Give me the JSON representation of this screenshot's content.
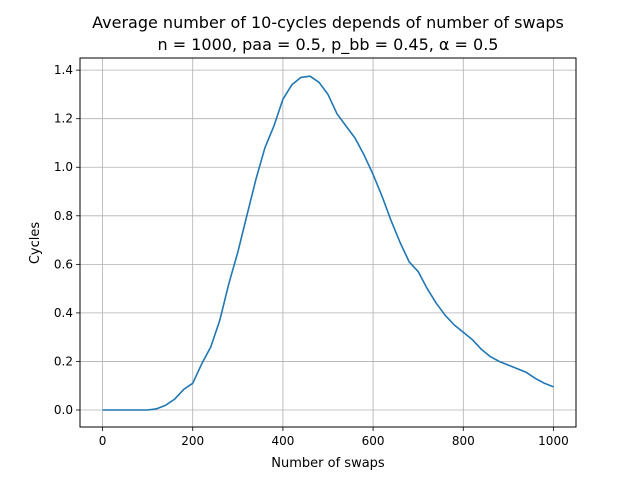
{
  "chart_data": {
    "type": "line",
    "title": "Average number of 10-cycles depends of number of swaps",
    "subtitle": "n = 1000, paa = 0.5, p_bb = 0.45, α = 0.5",
    "xlabel": "Number of swaps",
    "ylabel": "Cycles",
    "xlim": [
      -50,
      1050
    ],
    "ylim": [
      -0.07,
      1.45
    ],
    "xticks": [
      0,
      200,
      400,
      600,
      800,
      1000
    ],
    "yticks": [
      0.0,
      0.2,
      0.4,
      0.6,
      0.8,
      1.0,
      1.2,
      1.4
    ],
    "xtick_labels": [
      "0",
      "200",
      "400",
      "600",
      "800",
      "1000"
    ],
    "ytick_labels": [
      "0.0",
      "0.2",
      "0.4",
      "0.6",
      "0.8",
      "1.0",
      "1.2",
      "1.4"
    ],
    "grid": true,
    "series": [
      {
        "color": "#1f77b4",
        "x": [
          0,
          50,
          100,
          120,
          140,
          160,
          180,
          200,
          220,
          240,
          260,
          280,
          300,
          320,
          340,
          360,
          380,
          400,
          420,
          440,
          460,
          480,
          500,
          520,
          540,
          560,
          580,
          600,
          620,
          640,
          660,
          680,
          700,
          720,
          740,
          760,
          780,
          800,
          820,
          840,
          860,
          880,
          900,
          920,
          940,
          960,
          980,
          1000
        ],
        "y": [
          0.0,
          0.0,
          0.0,
          0.005,
          0.02,
          0.045,
          0.085,
          0.11,
          0.19,
          0.26,
          0.37,
          0.52,
          0.65,
          0.8,
          0.95,
          1.08,
          1.17,
          1.28,
          1.34,
          1.37,
          1.375,
          1.35,
          1.3,
          1.22,
          1.17,
          1.12,
          1.05,
          0.97,
          0.88,
          0.78,
          0.69,
          0.61,
          0.57,
          0.5,
          0.44,
          0.39,
          0.35,
          0.32,
          0.29,
          0.25,
          0.22,
          0.2,
          0.185,
          0.17,
          0.155,
          0.13,
          0.11,
          0.095
        ]
      }
    ]
  }
}
